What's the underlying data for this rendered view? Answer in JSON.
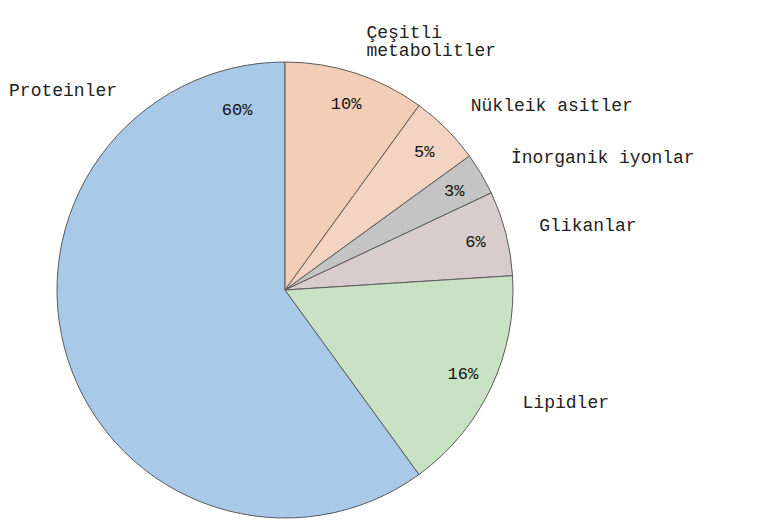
{
  "chart_data": {
    "type": "pie",
    "categories": [
      "Proteinler",
      "Çeşitli metabolitler",
      "Nükleik asitler",
      "İnorganik iyonlar",
      "Glikanlar",
      "Lipidler"
    ],
    "values": [
      60,
      10,
      5,
      3,
      6,
      16
    ],
    "value_labels": [
      "60%",
      "10%",
      "5%",
      "3%",
      "6%",
      "16%"
    ],
    "colors": [
      "#a9c9e9",
      "#f4cdb6",
      "#f3d3c1",
      "#c4c4c4",
      "#d9cccc",
      "#c9e2c4"
    ],
    "data_labels": true
  }
}
